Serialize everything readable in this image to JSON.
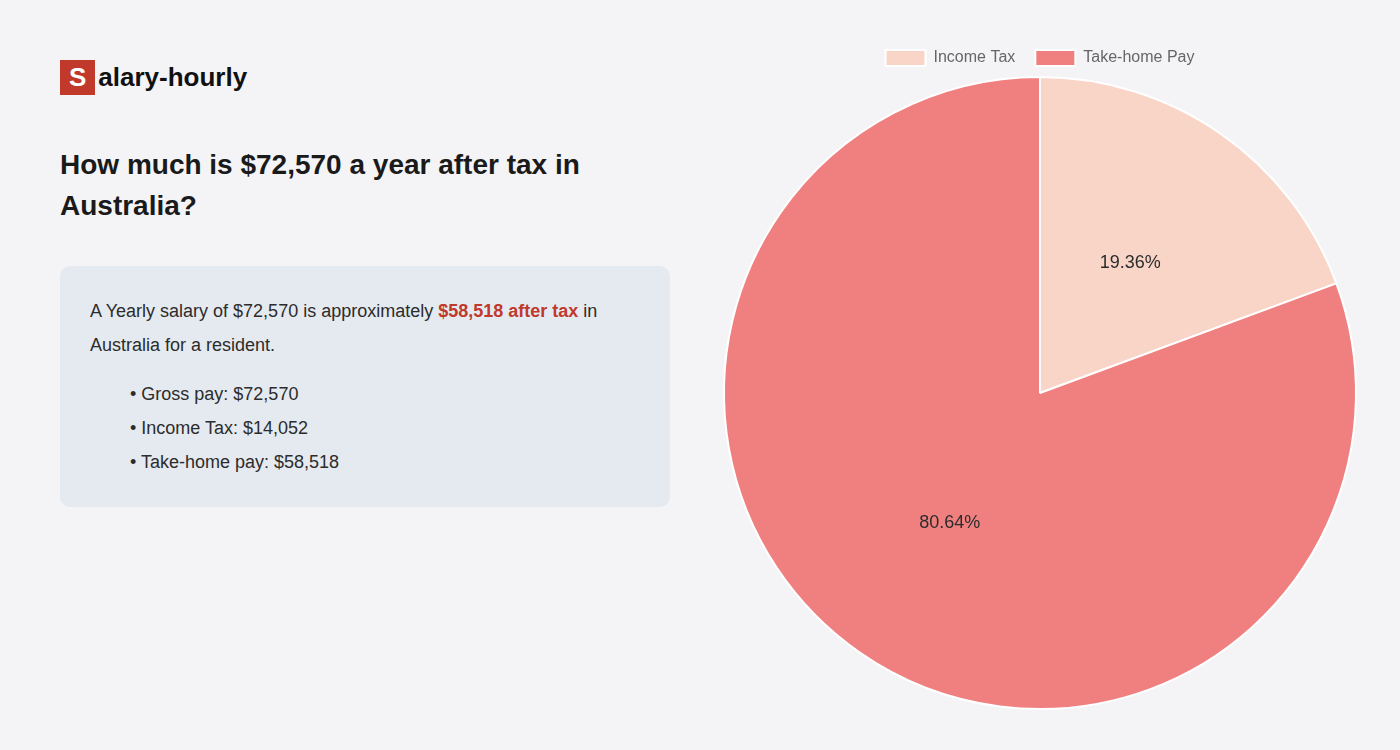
{
  "chart_data": {
    "type": "pie",
    "title": [
      "How much is $72,570 a year after tax in",
      "Australia?"
    ],
    "annotations": [
      [
        {
          "text": "S",
          "color": "#c0392b"
        },
        {
          "text": "alary-hourly"
        }
      ],
      [
        {
          "text": "A Yearly salary of $72,570 is approximately "
        },
        {
          "text": "$58,518 after tax",
          "color": "#c0392b"
        },
        {
          "text": " in"
        }
      ],
      [
        {
          "text": "Australia for a resident."
        }
      ],
      [
        {
          "text": "• Gross pay: $72,570"
        }
      ],
      [
        {
          "text": "• Income Tax: $14,052"
        }
      ],
      [
        {
          "text": "• Take-home pay: $58,518"
        }
      ]
    ],
    "categories": [
      "Income Tax",
      "Take-home Pay"
    ],
    "values": [
      19.36,
      80.64
    ],
    "value_labels": [
      "19.36%",
      "80.64%"
    ],
    "colors": [
      "#f9d5c8",
      "#f08080"
    ],
    "data_labels": true,
    "legend": "top"
  }
}
